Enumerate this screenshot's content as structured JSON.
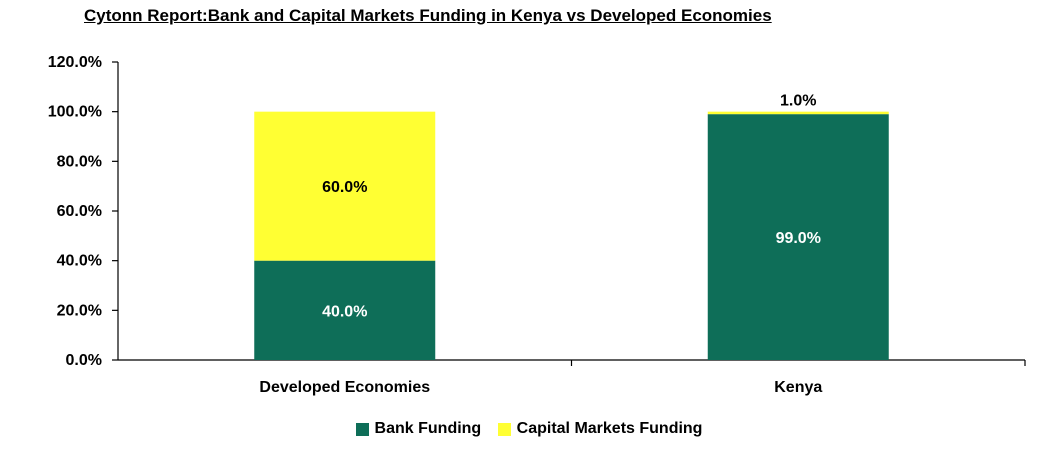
{
  "chart_data": {
    "type": "bar",
    "stacked": true,
    "title": "Cytonn Report:Bank and Capital Markets Funding in Kenya vs Developed Economies",
    "categories": [
      "Developed Economies",
      "Kenya"
    ],
    "series": [
      {
        "name": "Bank Funding",
        "values": [
          40.0,
          99.0
        ],
        "labels": [
          "40.0%",
          "99.0%"
        ],
        "color": "#0e6e58",
        "label_color": "#ffffff"
      },
      {
        "name": "Capital Markets Funding",
        "values": [
          60.0,
          1.0
        ],
        "labels": [
          "60.0%",
          "1.0%"
        ],
        "color": "#ffff33",
        "label_color": "#000000"
      }
    ],
    "ylim": [
      0,
      120
    ],
    "yticks": [
      "0.0%",
      "20.0%",
      "40.0%",
      "60.0%",
      "80.0%",
      "100.0%",
      "120.0%"
    ],
    "grid": false,
    "legend_position": "bottom"
  }
}
